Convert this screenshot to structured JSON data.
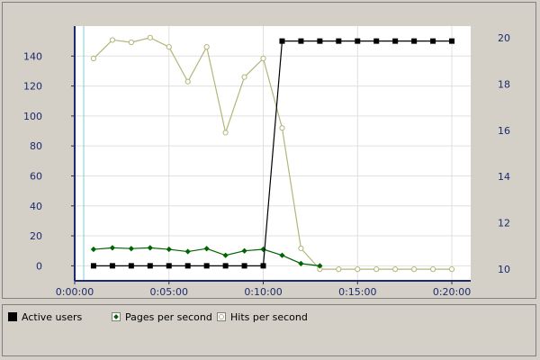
{
  "legend": {
    "items": [
      {
        "label": "Active users"
      },
      {
        "label": "Pages per second"
      },
      {
        "label": "Hits per second"
      }
    ]
  },
  "chart_data": {
    "type": "line",
    "grid": true,
    "legend_position": "bottom",
    "x_ticks": [
      "0:00:00",
      "0:05:00",
      "0:10:00",
      "0:15:00",
      "0:20:00"
    ],
    "xlim_seconds": [
      0,
      1260
    ],
    "ylim_left": [
      -10,
      160
    ],
    "ylim_right": [
      9.5,
      20.5
    ],
    "y_ticks_left": [
      0,
      20,
      40,
      60,
      80,
      100,
      120,
      140
    ],
    "y_ticks_right": [
      10,
      12,
      14,
      16,
      18,
      20
    ],
    "colors": {
      "active": "#000000",
      "pages": "#006400",
      "hits": "#b4b47a",
      "axis": "#1c2a6b",
      "grid": "#e0e0e0"
    },
    "series": [
      {
        "name": "Active users",
        "axis": "left",
        "marker": "square",
        "x": [
          60,
          120,
          180,
          240,
          300,
          360,
          420,
          480,
          540,
          600,
          660,
          720,
          780,
          840,
          900,
          960,
          1020,
          1080,
          1140,
          1200
        ],
        "y": [
          0,
          0,
          0,
          0,
          0,
          0,
          0,
          0,
          0,
          0,
          150,
          150,
          150,
          150,
          150,
          150,
          150,
          150,
          150,
          150
        ]
      },
      {
        "name": "Pages per second",
        "axis": "left",
        "marker": "diamond",
        "x": [
          60,
          120,
          180,
          240,
          300,
          360,
          420,
          480,
          540,
          600,
          660,
          720,
          780
        ],
        "y": [
          11,
          12,
          11.5,
          12,
          11,
          9.5,
          11.5,
          7,
          10,
          11,
          7,
          1.5,
          0
        ]
      },
      {
        "name": "Hits per second",
        "axis": "right",
        "marker": "circle",
        "x": [
          60,
          120,
          180,
          240,
          300,
          360,
          420,
          480,
          540,
          600,
          660,
          720,
          780,
          840,
          900,
          960,
          1020,
          1080,
          1140,
          1200
        ],
        "y": [
          19.1,
          19.9,
          19.8,
          20,
          19.6,
          18.1,
          19.6,
          15.9,
          18.3,
          19.1,
          16.1,
          10.9,
          10,
          10,
          10,
          10,
          10,
          10,
          10,
          10
        ]
      }
    ]
  }
}
